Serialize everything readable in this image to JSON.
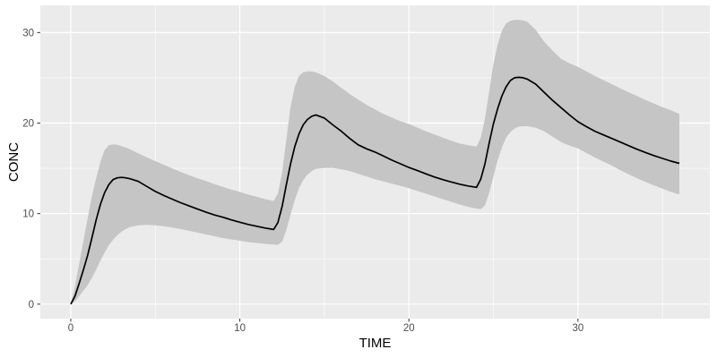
{
  "chart_data": {
    "type": "line",
    "title": "",
    "xlabel": "TIME",
    "ylabel": "CONC",
    "x_ticks": [
      0,
      10,
      20,
      30
    ],
    "y_ticks": [
      0,
      10,
      20,
      30
    ],
    "x_minor_ticks": [
      5,
      15,
      25,
      35
    ],
    "y_minor_ticks": [
      5,
      15,
      25
    ],
    "xlim": [
      -1.8,
      37.8
    ],
    "ylim": [
      -1.6,
      33.0
    ],
    "grid": "major-and-minor",
    "legend_position": "none",
    "theme": "ggplot2-gray",
    "colors": {
      "page_background": "#FFFFFF",
      "panel_background": "#EBEBEB",
      "gridline": "#FFFFFF",
      "ribbon_fill": "#C5C5C5",
      "median_line": "#000000",
      "tick_mark": "#333333",
      "tick_label": "#4D4D4D",
      "axis_title": "#000000"
    },
    "series": [
      {
        "name": "prediction-interval-ribbon",
        "type": "area-band"
      },
      {
        "name": "median-concentration",
        "type": "line"
      }
    ],
    "points": {
      "time": [
        0,
        0.25,
        0.5,
        0.75,
        1,
        1.25,
        1.5,
        1.75,
        2,
        2.25,
        2.5,
        2.75,
        3,
        3.25,
        3.5,
        4,
        4.5,
        5,
        5.5,
        6,
        6.5,
        7,
        7.5,
        8,
        8.5,
        9,
        9.5,
        10,
        10.5,
        11,
        11.5,
        12,
        12.25,
        12.5,
        12.75,
        13,
        13.25,
        13.5,
        13.75,
        14,
        14.25,
        14.5,
        15,
        15.5,
        16,
        16.5,
        17,
        17.5,
        18,
        18.5,
        19,
        19.5,
        20,
        20.5,
        21,
        21.5,
        22,
        22.5,
        23,
        23.5,
        24,
        24.25,
        24.5,
        24.75,
        25,
        25.25,
        25.5,
        25.75,
        26,
        26.25,
        26.5,
        26.75,
        27,
        27.5,
        28,
        28.5,
        29,
        29.5,
        30,
        30.5,
        31,
        31.5,
        32,
        32.5,
        33,
        33.5,
        34,
        34.5,
        35,
        35.5,
        36
      ],
      "median": [
        0,
        0.9,
        2.3,
        3.8,
        5.4,
        7.3,
        9.3,
        11.0,
        12.3,
        13.2,
        13.75,
        13.95,
        14.0,
        13.95,
        13.85,
        13.55,
        13.0,
        12.45,
        12.0,
        11.6,
        11.2,
        10.85,
        10.5,
        10.15,
        9.85,
        9.6,
        9.3,
        9.05,
        8.8,
        8.6,
        8.4,
        8.25,
        9.0,
        10.8,
        13.2,
        15.5,
        17.4,
        18.8,
        19.8,
        20.4,
        20.75,
        20.9,
        20.55,
        19.8,
        19.1,
        18.3,
        17.6,
        17.15,
        16.8,
        16.35,
        15.9,
        15.5,
        15.1,
        14.75,
        14.4,
        14.05,
        13.75,
        13.5,
        13.25,
        13.05,
        12.9,
        13.8,
        15.5,
        17.8,
        19.9,
        21.6,
        23.0,
        24.0,
        24.7,
        25.0,
        25.05,
        25.0,
        24.85,
        24.3,
        23.4,
        22.5,
        21.7,
        20.9,
        20.15,
        19.6,
        19.1,
        18.7,
        18.3,
        17.9,
        17.5,
        17.1,
        16.75,
        16.4,
        16.1,
        15.8,
        15.55
      ],
      "lower": [
        0,
        0.3,
        0.9,
        1.5,
        2.1,
        2.9,
        3.8,
        4.8,
        5.7,
        6.5,
        7.1,
        7.6,
        8.0,
        8.3,
        8.5,
        8.7,
        8.75,
        8.7,
        8.6,
        8.45,
        8.3,
        8.1,
        7.9,
        7.7,
        7.5,
        7.3,
        7.15,
        7.0,
        6.85,
        6.75,
        6.65,
        6.6,
        6.55,
        6.9,
        8.2,
        9.9,
        11.5,
        12.8,
        13.7,
        14.3,
        14.7,
        14.95,
        15.05,
        15.05,
        14.9,
        14.7,
        14.4,
        14.1,
        13.8,
        13.55,
        13.3,
        13.05,
        12.8,
        12.5,
        12.2,
        11.9,
        11.6,
        11.3,
        11.0,
        10.75,
        10.55,
        10.5,
        10.9,
        12.3,
        14.1,
        15.9,
        17.3,
        18.4,
        19.0,
        19.4,
        19.6,
        19.65,
        19.65,
        19.5,
        19.1,
        18.5,
        17.9,
        17.5,
        17.2,
        16.7,
        16.2,
        15.75,
        15.3,
        14.8,
        14.35,
        13.9,
        13.5,
        13.1,
        12.75,
        12.4,
        12.1
      ],
      "upper": [
        0,
        2.0,
        4.5,
        7.0,
        9.5,
        11.9,
        13.9,
        15.7,
        17.0,
        17.55,
        17.65,
        17.6,
        17.45,
        17.3,
        17.1,
        16.65,
        16.2,
        15.8,
        15.4,
        15.0,
        14.6,
        14.25,
        13.9,
        13.6,
        13.25,
        12.95,
        12.65,
        12.4,
        12.1,
        11.85,
        11.6,
        11.4,
        12.2,
        14.5,
        18.2,
        21.8,
        24.0,
        25.2,
        25.6,
        25.7,
        25.7,
        25.6,
        25.2,
        24.6,
        23.9,
        23.2,
        22.6,
        22.0,
        21.5,
        21.0,
        20.6,
        20.2,
        19.9,
        19.5,
        19.1,
        18.75,
        18.4,
        18.05,
        17.75,
        17.55,
        17.4,
        18.4,
        20.5,
        23.5,
        26.5,
        28.7,
        30.2,
        31.0,
        31.3,
        31.4,
        31.4,
        31.35,
        31.2,
        30.3,
        29.0,
        28.0,
        27.1,
        26.6,
        26.2,
        25.7,
        25.2,
        24.75,
        24.3,
        23.85,
        23.4,
        23.0,
        22.55,
        22.15,
        21.75,
        21.4,
        21.0
      ]
    }
  }
}
